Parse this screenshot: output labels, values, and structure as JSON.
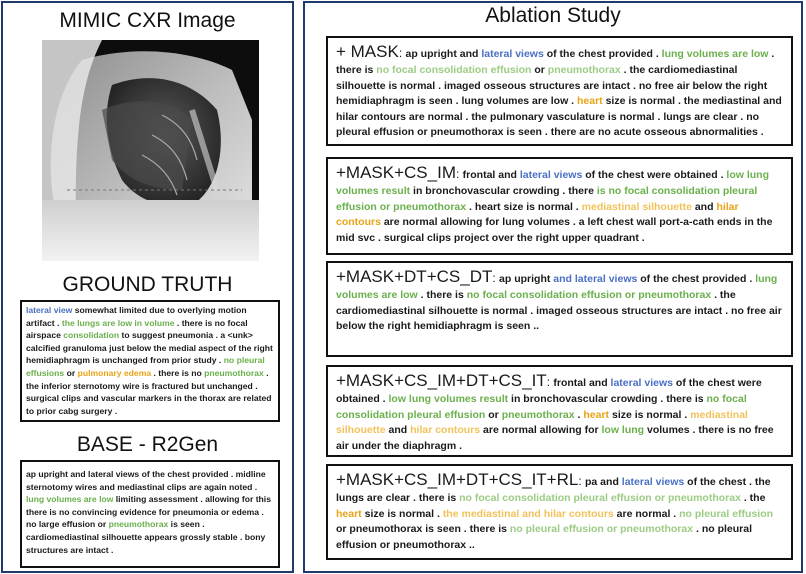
{
  "left": {
    "image_title": "MIMIC CXR Image",
    "ground_truth_title": "GROUND TRUTH",
    "ground_truth": [
      {
        "t": "lateral view",
        "c": "blue"
      },
      {
        "t": " somewhat limited due to overlying motion artifact . ",
        "c": ""
      },
      {
        "t": "the lungs are low in volume",
        "c": "green"
      },
      {
        "t": " . there is no focal airspace ",
        "c": ""
      },
      {
        "t": "consolidation",
        "c": "green"
      },
      {
        "t": " to suggest pneumonia . a <unk> calcified granuloma just below the medial aspect of the right hemidiaphragm is unchanged from prior study . ",
        "c": ""
      },
      {
        "t": "no pleural effusions",
        "c": "green"
      },
      {
        "t": " or ",
        "c": ""
      },
      {
        "t": "pulmonary edema",
        "c": "orange"
      },
      {
        "t": " . there is no ",
        "c": ""
      },
      {
        "t": "pneumothorax",
        "c": "green"
      },
      {
        "t": " . the inferior sternotomy wire is fractured but unchanged . surgical clips and vascular markers in the thorax are related to prior cabg surgery .",
        "c": ""
      }
    ],
    "base_title": "BASE - R2Gen",
    "base": [
      {
        "t": "ap upright and lateral views of the chest provided . midline sternotomy wires and mediastinal clips are again noted . ",
        "c": ""
      },
      {
        "t": "lung volumes are low",
        "c": "green"
      },
      {
        "t": " limiting assessment . allowing for this there is no convincing evidence for pneumonia or edema . no large effusion or ",
        "c": ""
      },
      {
        "t": "pneumothorax",
        "c": "green"
      },
      {
        "t": " is seen . cardiomediastinal silhouette appears grossly stable . bony structures are intact .",
        "c": ""
      }
    ]
  },
  "right": {
    "title": "Ablation Study",
    "reports": [
      {
        "name": "+ MASK",
        "segments": [
          {
            "t": "ap upright and ",
            "c": ""
          },
          {
            "t": "lateral views",
            "c": "blue"
          },
          {
            "t": " of the chest provided . ",
            "c": ""
          },
          {
            "t": "lung volumes are low",
            "c": "green"
          },
          {
            "t": " . there is ",
            "c": ""
          },
          {
            "t": "no focal consolidation effusion",
            "c": "lgreen"
          },
          {
            "t": " or ",
            "c": ""
          },
          {
            "t": "pneumothorax",
            "c": "lgreen"
          },
          {
            "t": " . the cardiomediastinal silhouette is normal . imaged osseous structures are intact . no free air below the right hemidiaphragm is seen . lung volumes are low . ",
            "c": ""
          },
          {
            "t": "heart",
            "c": "orange"
          },
          {
            "t": " size is normal . the mediastinal and hilar contours are normal . the pulmonary vasculature is normal . lungs are clear . no pleural effusion or pneumothorax is seen . there are no acute osseous abnormalities .",
            "c": ""
          }
        ]
      },
      {
        "name": "+MASK+CS_IM",
        "segments": [
          {
            "t": "frontal and ",
            "c": ""
          },
          {
            "t": "lateral views",
            "c": "blue"
          },
          {
            "t": " of the chest were obtained . ",
            "c": ""
          },
          {
            "t": "low lung volumes result",
            "c": "green"
          },
          {
            "t": " in bronchovascular crowding . there ",
            "c": ""
          },
          {
            "t": "is no focal consolidation pleural effusion or pneumothorax",
            "c": "green"
          },
          {
            "t": " . heart size is normal . ",
            "c": ""
          },
          {
            "t": "mediastinal silhouette",
            "c": "lorange"
          },
          {
            "t": " and ",
            "c": ""
          },
          {
            "t": "hilar contours",
            "c": "orange"
          },
          {
            "t": " are normal allowing for lung volumes . a left chest wall port-a-cath ends in the mid svc . surgical clips project over the right upper quadrant .",
            "c": ""
          }
        ]
      },
      {
        "name": "+MASK+DT+CS_DT",
        "segments": [
          {
            "t": "ap upright ",
            "c": ""
          },
          {
            "t": "and lateral views",
            "c": "blue"
          },
          {
            "t": " of the chest provided . ",
            "c": ""
          },
          {
            "t": "lung volumes are low",
            "c": "green"
          },
          {
            "t": " . there is ",
            "c": ""
          },
          {
            "t": "no focal consolidation effusion or pneumothorax",
            "c": "green"
          },
          {
            "t": " . the cardiomediastinal silhouette is normal . imaged osseous structures are intact . no free air below the right hemidiaphragm is seen ..",
            "c": ""
          }
        ]
      },
      {
        "name": "+MASK+CS_IM+DT+CS_IT",
        "segments": [
          {
            "t": "frontal and ",
            "c": ""
          },
          {
            "t": "lateral views",
            "c": "blue"
          },
          {
            "t": " of the chest were obtained . ",
            "c": ""
          },
          {
            "t": "low lung volumes result",
            "c": "green"
          },
          {
            "t": " in bronchovascular crowding . there is ",
            "c": ""
          },
          {
            "t": "no focal consolidation pleural effusion",
            "c": "green"
          },
          {
            "t": " or ",
            "c": ""
          },
          {
            "t": "pneumothorax",
            "c": "green"
          },
          {
            "t": " . ",
            "c": ""
          },
          {
            "t": "heart",
            "c": "orange"
          },
          {
            "t": " size is normal . ",
            "c": ""
          },
          {
            "t": "mediastinal silhouette",
            "c": "lorange"
          },
          {
            "t": " and ",
            "c": ""
          },
          {
            "t": "hilar contours",
            "c": "lorange"
          },
          {
            "t": " are normal allowing for ",
            "c": ""
          },
          {
            "t": "low lung",
            "c": "green"
          },
          {
            "t": " volumes . there is no free air under the diaphragm .",
            "c": ""
          }
        ]
      },
      {
        "name": "+MASK+CS_IM+DT+CS_IT+RL",
        "segments": [
          {
            "t": "pa and ",
            "c": ""
          },
          {
            "t": "lateral views",
            "c": "blue"
          },
          {
            "t": " of the chest . the lungs are clear . there is ",
            "c": ""
          },
          {
            "t": "no focal consolidation pleural effusion or pneumothorax",
            "c": "lgreen"
          },
          {
            "t": " . the ",
            "c": ""
          },
          {
            "t": "heart",
            "c": "orange"
          },
          {
            "t": " size is normal . ",
            "c": ""
          },
          {
            "t": "the mediastinal and hilar contours",
            "c": "lorange"
          },
          {
            "t": " are normal . ",
            "c": ""
          },
          {
            "t": "no pleural effusion",
            "c": "lgreen"
          },
          {
            "t": " or pneumothorax is seen . there is ",
            "c": ""
          },
          {
            "t": "no pleural effusion or pneumothorax",
            "c": "lgreen"
          },
          {
            "t": " . no pleural effusion or pneumothorax ..",
            "c": ""
          }
        ]
      }
    ]
  },
  "colors": {
    "blue": "#4a6fc4",
    "green": "#6ab04c",
    "lgreen": "#9ccc84",
    "orange": "#e8a317",
    "lorange": "#f1c25a",
    "border": "#1f3a6b"
  }
}
